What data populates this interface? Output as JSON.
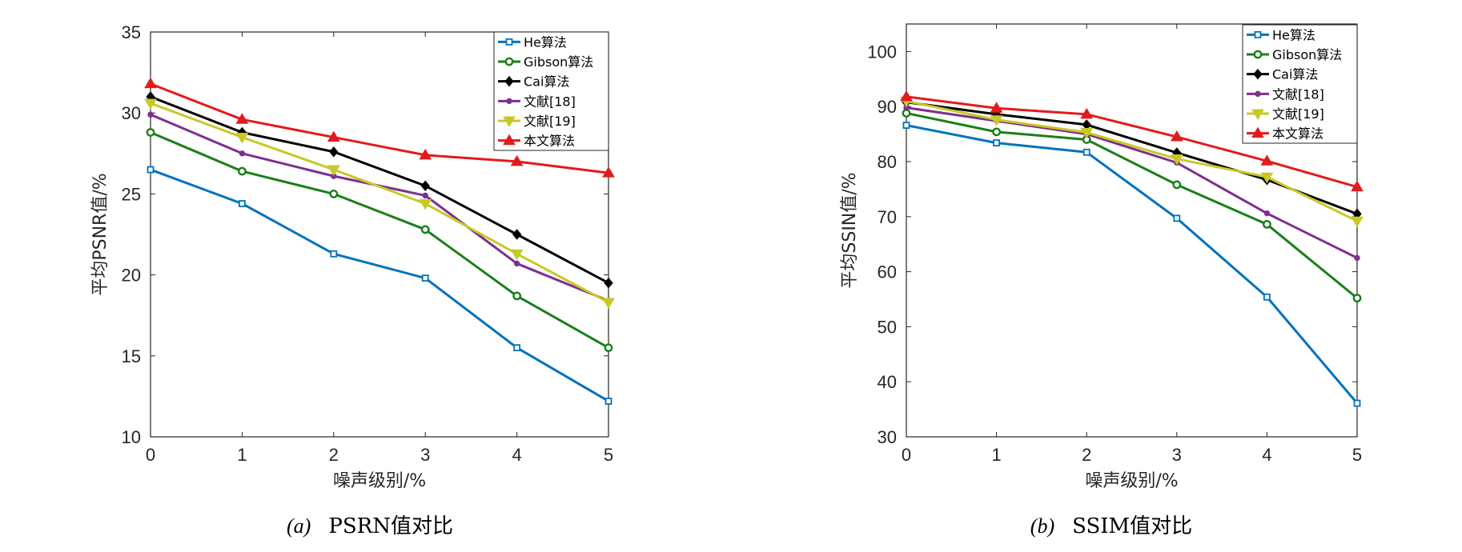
{
  "chart_data": [
    {
      "type": "line",
      "ylabel": "平均PSNR值/%",
      "xlabel": "噪声级别/%",
      "caption_prefix": "(a)",
      "caption": "PSRN值对比",
      "x": [
        0,
        1,
        2,
        3,
        4,
        5
      ],
      "xlim": [
        0,
        5
      ],
      "ylim": [
        10,
        35
      ],
      "yticks": [
        10,
        15,
        20,
        25,
        30,
        35
      ],
      "grid": false,
      "legend_position": "top-right",
      "series": [
        {
          "name": "He算法",
          "color": "#0072BD",
          "marker": "square",
          "values": [
            26.5,
            24.4,
            21.3,
            19.8,
            15.5,
            12.2
          ]
        },
        {
          "name": "Gibson算法",
          "color": "#1A7F1A",
          "marker": "circle",
          "values": [
            28.8,
            26.4,
            25.0,
            22.8,
            18.7,
            15.5
          ]
        },
        {
          "name": "Cai算法",
          "color": "#000000",
          "marker": "diamond",
          "values": [
            31.0,
            28.8,
            27.6,
            25.5,
            22.5,
            19.5
          ]
        },
        {
          "name": "文献[18]",
          "color": "#7E2F8E",
          "marker": "dot",
          "values": [
            29.9,
            27.5,
            26.1,
            24.9,
            20.7,
            18.4
          ]
        },
        {
          "name": "文献[19]",
          "color": "#C8C828",
          "marker": "triangle-down",
          "values": [
            30.6,
            28.5,
            26.5,
            24.4,
            21.3,
            18.3
          ]
        },
        {
          "name": "本文算法",
          "color": "#E31A1C",
          "marker": "triangle-up",
          "values": [
            31.8,
            29.6,
            28.5,
            27.4,
            27.0,
            26.3
          ]
        }
      ]
    },
    {
      "type": "line",
      "ylabel": "平均SSIN值/%",
      "xlabel": "噪声级别/%",
      "caption_prefix": "(b)",
      "caption": "SSIM值对比",
      "x": [
        0,
        1,
        2,
        3,
        4,
        5
      ],
      "xlim": [
        0,
        5
      ],
      "ylim": [
        30,
        105
      ],
      "yticks": [
        30,
        40,
        50,
        60,
        70,
        80,
        90,
        100
      ],
      "grid": false,
      "legend_position": "top-right",
      "series": [
        {
          "name": "He算法",
          "color": "#0072BD",
          "marker": "square",
          "values": [
            86.6,
            83.4,
            81.7,
            69.7,
            55.4,
            36.1
          ]
        },
        {
          "name": "Gibson算法",
          "color": "#1A7F1A",
          "marker": "circle",
          "values": [
            88.8,
            85.4,
            84.0,
            75.8,
            68.6,
            55.2
          ]
        },
        {
          "name": "Cai算法",
          "color": "#000000",
          "marker": "diamond",
          "values": [
            90.8,
            88.6,
            86.7,
            81.6,
            76.7,
            70.5
          ]
        },
        {
          "name": "文献[18]",
          "color": "#7E2F8E",
          "marker": "dot",
          "values": [
            89.8,
            87.4,
            85.0,
            79.8,
            70.6,
            62.5
          ]
        },
        {
          "name": "文献[19]",
          "color": "#C8C828",
          "marker": "triangle-down",
          "values": [
            91.0,
            87.6,
            85.3,
            80.5,
            77.2,
            69.2
          ]
        },
        {
          "name": "本文算法",
          "color": "#E31A1C",
          "marker": "triangle-up",
          "values": [
            91.8,
            89.7,
            88.6,
            84.5,
            80.1,
            75.4
          ]
        }
      ]
    }
  ]
}
